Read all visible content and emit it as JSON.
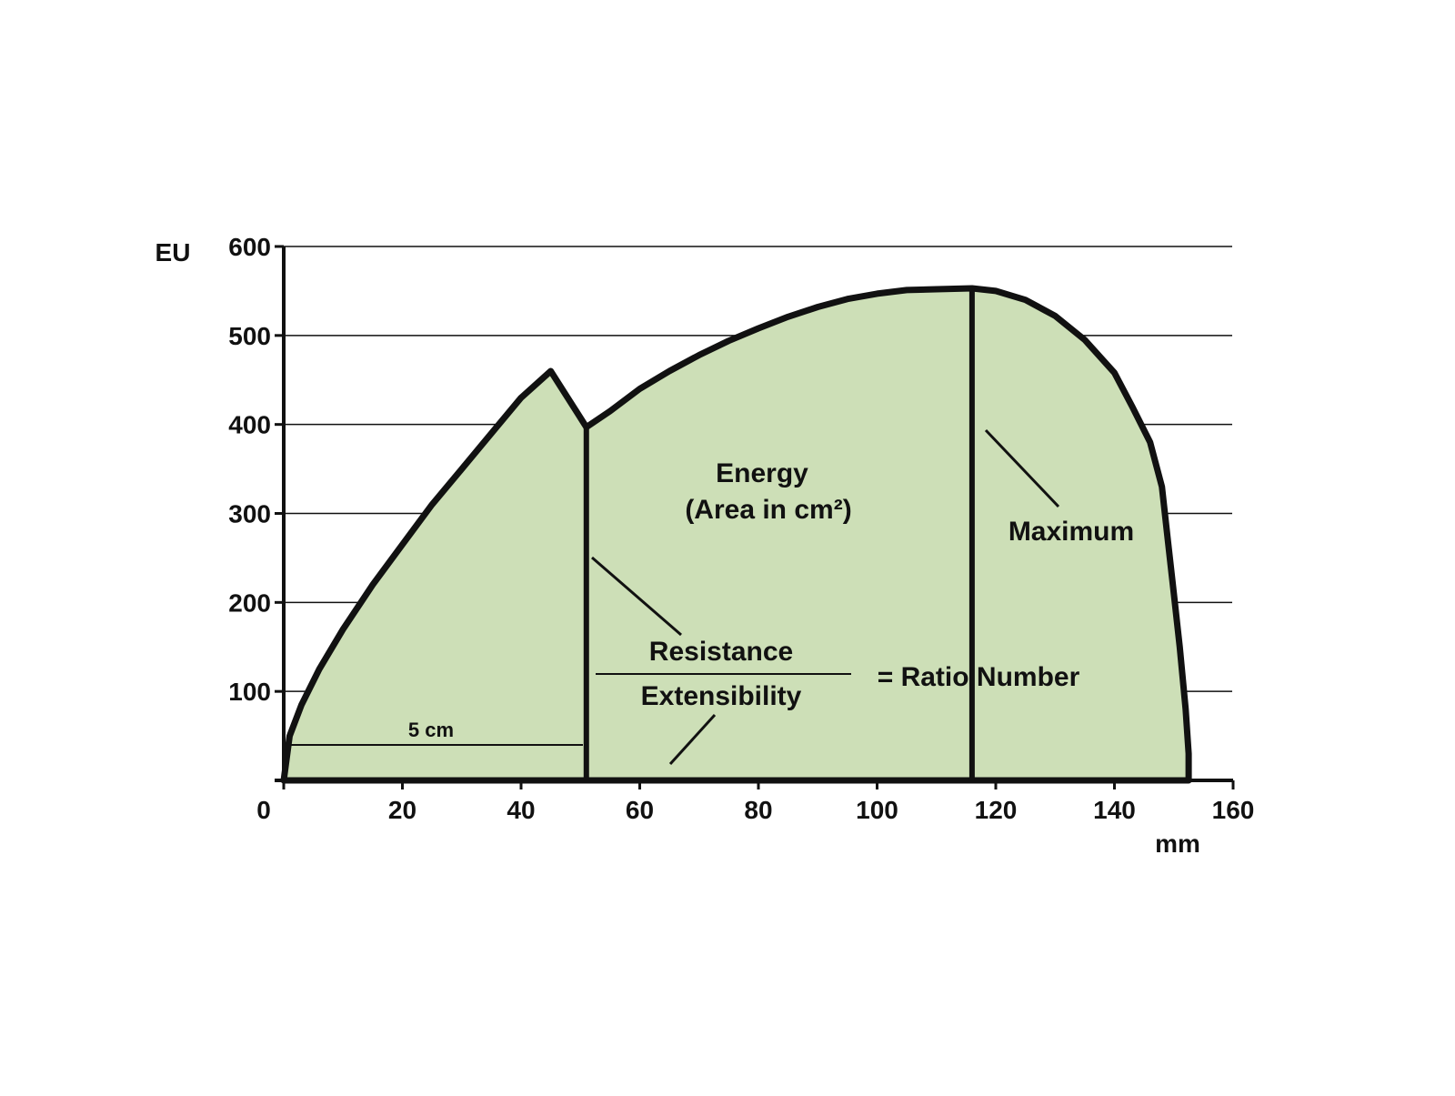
{
  "chart_data": {
    "type": "area",
    "title": "",
    "ylabel": "EU",
    "xlabel": "mm",
    "xlim": [
      0,
      160
    ],
    "ylim": [
      0,
      600
    ],
    "x_ticks": [
      0,
      20,
      40,
      60,
      80,
      100,
      120,
      140,
      160
    ],
    "x_tick_labels": [
      "0",
      "20",
      "40",
      "60",
      "80",
      "100",
      "120",
      "140",
      "160"
    ],
    "y_ticks": [
      100,
      200,
      300,
      400,
      500,
      600
    ],
    "y_tick_labels": [
      "100",
      "200",
      "300",
      "400",
      "500",
      "600"
    ],
    "grid": "horizontal",
    "fill_color": "#cddfb7",
    "line_color": "#111111",
    "curve": {
      "x": [
        0,
        1,
        3,
        6,
        10,
        15,
        20,
        25,
        30,
        35,
        40,
        45,
        51,
        55,
        60,
        65,
        70,
        75,
        80,
        85,
        90,
        95,
        100,
        105,
        110,
        116,
        120,
        125,
        130,
        135,
        140,
        143,
        146,
        148,
        149,
        150,
        151,
        152,
        152.5,
        152.5
      ],
      "y": [
        0,
        50,
        85,
        125,
        170,
        220,
        265,
        310,
        350,
        390,
        430,
        460,
        397,
        415,
        440,
        460,
        478,
        494,
        508,
        521,
        532,
        541,
        547,
        551,
        552,
        553,
        550,
        540,
        522,
        495,
        458,
        420,
        380,
        330,
        270,
        210,
        150,
        80,
        30,
        0
      ],
      "note_unused": ""
    },
    "vertical_markers": [
      {
        "x": 51,
        "y_top": 397
      },
      {
        "x": 116,
        "y_top": 553
      }
    ],
    "annotations": {
      "energy_line1": "Energy",
      "energy_line2": "(Area in cm²)",
      "maximum": "Maximum",
      "resistance": "Resistance",
      "extensibility": "Extensibility",
      "ratio": "= Ratio Number",
      "five_cm": "5 cm"
    }
  }
}
